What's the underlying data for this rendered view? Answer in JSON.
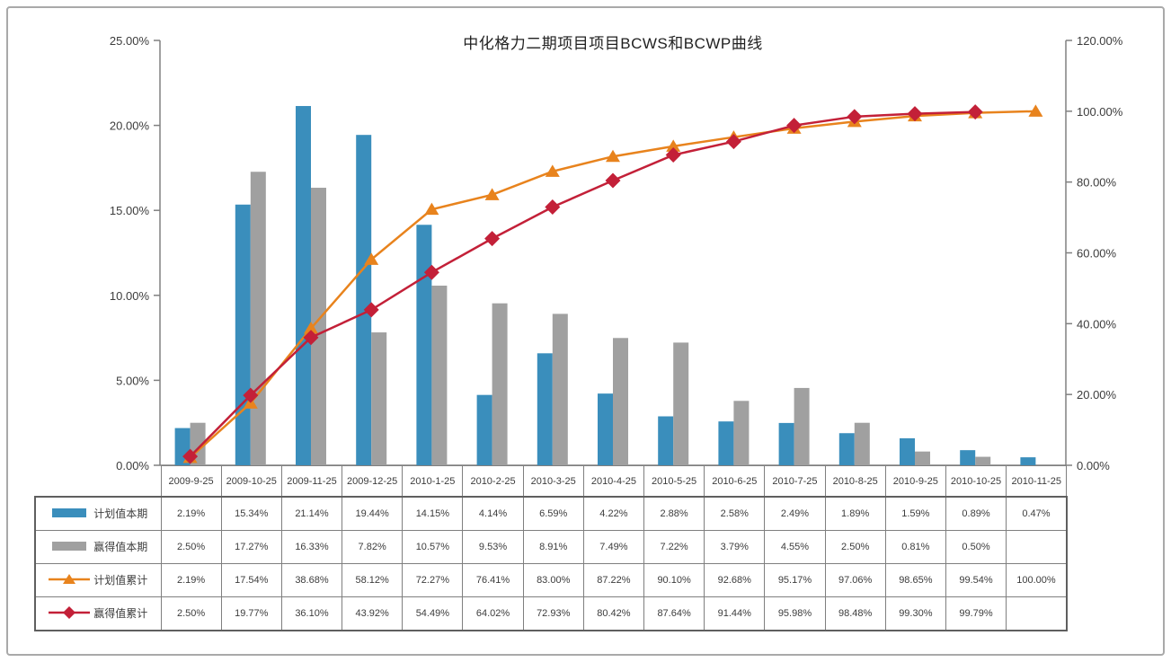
{
  "page": {
    "background": "#ffffff",
    "frame_border_color": "#a9a9a9"
  },
  "chart_data": {
    "type": "combo-bar-line",
    "title": "中化格力二期项目项目BCWS和BCWP曲线",
    "grid": false,
    "legend_position": "table-left-column",
    "categories": [
      "2009-9-25",
      "2009-10-25",
      "2009-11-25",
      "2009-12-25",
      "2010-1-25",
      "2010-2-25",
      "2010-3-25",
      "2010-4-25",
      "2010-5-25",
      "2010-6-25",
      "2010-7-25",
      "2010-8-25",
      "2010-9-25",
      "2010-10-25",
      "2010-11-25"
    ],
    "left_axis": {
      "min": 0,
      "max": 25,
      "step": 5,
      "labels": [
        "0.00%",
        "5.00%",
        "10.00%",
        "15.00%",
        "20.00%",
        "25.00%"
      ]
    },
    "right_axis": {
      "min": 0,
      "max": 120,
      "step": 20,
      "labels": [
        "0.00%",
        "20.00%",
        "40.00%",
        "60.00%",
        "80.00%",
        "100.00%",
        "120.00%"
      ]
    },
    "series": [
      {
        "key": "planned-current",
        "name": "计划值本期",
        "type": "bar",
        "swatch": "bar",
        "color": "#3a8ebc",
        "axis": "left",
        "values": [
          2.19,
          15.34,
          21.14,
          19.44,
          14.15,
          4.14,
          6.59,
          4.22,
          2.88,
          2.58,
          2.49,
          1.89,
          1.59,
          0.89,
          0.47
        ],
        "cells": [
          "2.19%",
          "15.34%",
          "21.14%",
          "19.44%",
          "14.15%",
          "4.14%",
          "6.59%",
          "4.22%",
          "2.88%",
          "2.58%",
          "2.49%",
          "1.89%",
          "1.59%",
          "0.89%",
          "0.47%"
        ]
      },
      {
        "key": "earned-current",
        "name": "赢得值本期",
        "type": "bar",
        "swatch": "bar",
        "color": "#a0a0a0",
        "axis": "left",
        "values": [
          2.5,
          17.27,
          16.33,
          7.82,
          10.57,
          9.53,
          8.91,
          7.49,
          7.22,
          3.79,
          4.55,
          2.5,
          0.81,
          0.5,
          null
        ],
        "cells": [
          "2.50%",
          "17.27%",
          "16.33%",
          "7.82%",
          "10.57%",
          "9.53%",
          "8.91%",
          "7.49%",
          "7.22%",
          "3.79%",
          "4.55%",
          "2.50%",
          "0.81%",
          "0.50%",
          ""
        ]
      },
      {
        "key": "planned-cumulative",
        "name": "计划值累计",
        "type": "line",
        "swatch": "line-triangle",
        "marker": "triangle",
        "color": "#e8831d",
        "axis": "right",
        "values": [
          2.19,
          17.54,
          38.68,
          58.12,
          72.27,
          76.41,
          83.0,
          87.22,
          90.1,
          92.68,
          95.17,
          97.06,
          98.65,
          99.54,
          100.0
        ],
        "cells": [
          "2.19%",
          "17.54%",
          "38.68%",
          "58.12%",
          "72.27%",
          "76.41%",
          "83.00%",
          "87.22%",
          "90.10%",
          "92.68%",
          "95.17%",
          "97.06%",
          "98.65%",
          "99.54%",
          "100.00%"
        ]
      },
      {
        "key": "earned-cumulative",
        "name": "赢得值累计",
        "type": "line",
        "swatch": "line-diamond",
        "marker": "diamond",
        "color": "#c32038",
        "axis": "right",
        "values": [
          2.5,
          19.77,
          36.1,
          43.92,
          54.49,
          64.02,
          72.93,
          80.42,
          87.64,
          91.44,
          95.98,
          98.48,
          99.3,
          99.79,
          null
        ],
        "cells": [
          "2.50%",
          "19.77%",
          "36.10%",
          "43.92%",
          "54.49%",
          "64.02%",
          "72.93%",
          "80.42%",
          "87.64%",
          "91.44%",
          "95.98%",
          "98.48%",
          "99.30%",
          "99.79%",
          ""
        ]
      }
    ]
  }
}
